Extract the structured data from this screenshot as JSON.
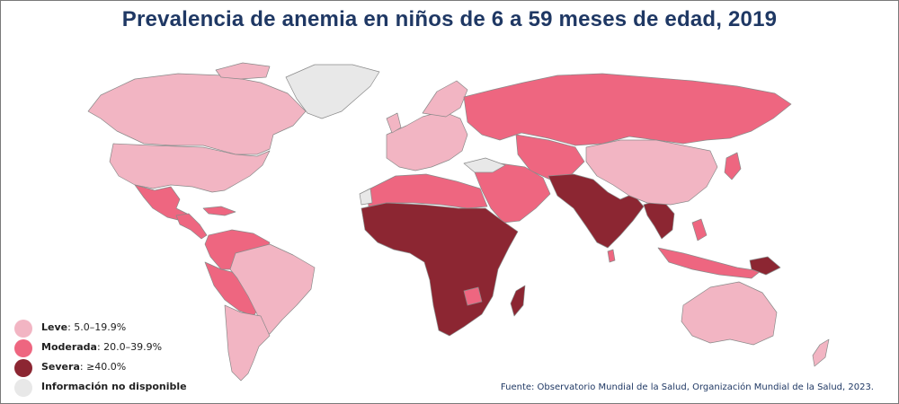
{
  "title": "Prevalencia de anemia en niños de 6 a 59 meses de edad, 2019",
  "colors": {
    "leve": "#f2b5c3",
    "moderada": "#ee6680",
    "severa": "#8c2632",
    "no_data": "#e8e8e8",
    "border": "#8a8a8a"
  },
  "legend": [
    {
      "name": "Leve",
      "value": ": 5.0–19.9%",
      "category": "leve"
    },
    {
      "name": "Moderada",
      "value": ": 20.0–39.9%",
      "category": "moderada"
    },
    {
      "name": "Severa",
      "value": ": ≥40.0%",
      "category": "severa"
    },
    {
      "name": "Información no disponible",
      "value": "",
      "category": "no_data"
    }
  ],
  "source": "Fuente: Observatorio Mundial de la Salud, Organización Mundial de la Salud, 2023."
}
